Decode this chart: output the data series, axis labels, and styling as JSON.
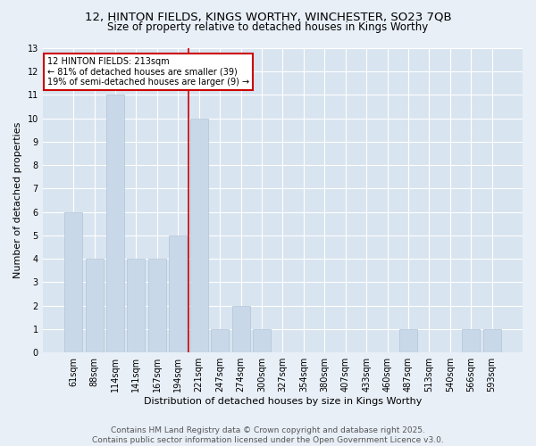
{
  "title_line1": "12, HINTON FIELDS, KINGS WORTHY, WINCHESTER, SO23 7QB",
  "title_line2": "Size of property relative to detached houses in Kings Worthy",
  "xlabel": "Distribution of detached houses by size in Kings Worthy",
  "ylabel": "Number of detached properties",
  "categories": [
    "61sqm",
    "88sqm",
    "114sqm",
    "141sqm",
    "167sqm",
    "194sqm",
    "221sqm",
    "247sqm",
    "274sqm",
    "300sqm",
    "327sqm",
    "354sqm",
    "380sqm",
    "407sqm",
    "433sqm",
    "460sqm",
    "487sqm",
    "513sqm",
    "540sqm",
    "566sqm",
    "593sqm"
  ],
  "values": [
    6,
    4,
    11,
    4,
    4,
    5,
    10,
    1,
    2,
    1,
    0,
    0,
    0,
    0,
    0,
    0,
    1,
    0,
    0,
    1,
    1
  ],
  "bar_color": "#c8d8e8",
  "bar_edge_color": "#b0c4d8",
  "reference_line_color": "#cc0000",
  "annotation_line1": "12 HINTON FIELDS: 213sqm",
  "annotation_line2": "← 81% of detached houses are smaller (39)",
  "annotation_line3": "19% of semi-detached houses are larger (9) →",
  "annotation_box_color": "#ffffff",
  "annotation_box_edge": "#cc0000",
  "ylim": [
    0,
    13
  ],
  "yticks": [
    0,
    1,
    2,
    3,
    4,
    5,
    6,
    7,
    8,
    9,
    10,
    11,
    12,
    13
  ],
  "footer_line1": "Contains HM Land Registry data © Crown copyright and database right 2025.",
  "footer_line2": "Contains public sector information licensed under the Open Government Licence v3.0.",
  "bg_color": "#e8eff7",
  "plot_bg_color": "#d8e4f0",
  "grid_color": "#ffffff",
  "title_fontsize": 9.5,
  "subtitle_fontsize": 8.5,
  "axis_label_fontsize": 8,
  "tick_fontsize": 7,
  "annotation_fontsize": 7,
  "footer_fontsize": 6.5
}
